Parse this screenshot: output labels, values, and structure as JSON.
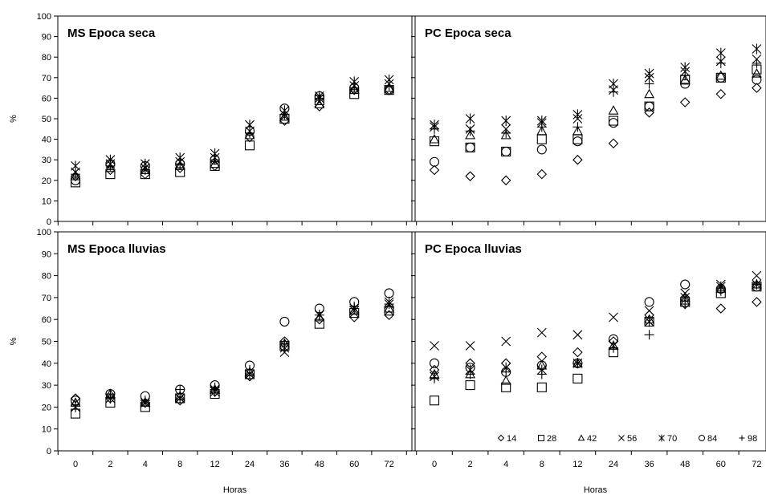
{
  "chart_data": [
    {
      "type": "scatter",
      "title": "MS Epoca seca",
      "xlabel": "",
      "ylabel": "%",
      "categories": [
        "0",
        "2",
        "4",
        "8",
        "12",
        "24",
        "36",
        "48",
        "60",
        "72"
      ],
      "ylim": [
        0,
        100
      ],
      "yticks": [
        0,
        10,
        20,
        30,
        40,
        50,
        60,
        70,
        80,
        90,
        100
      ],
      "grid": false,
      "series": [
        {
          "name": "14",
          "marker": "diamond",
          "values": [
            22,
            25,
            23,
            26,
            27,
            41,
            49,
            56,
            64,
            64
          ]
        },
        {
          "name": "28",
          "marker": "square",
          "values": [
            19,
            23,
            23,
            24,
            27,
            37,
            50,
            59,
            62,
            64
          ]
        },
        {
          "name": "42",
          "marker": "triangle",
          "values": [
            22,
            26,
            25,
            27,
            28,
            42,
            51,
            57,
            64,
            65
          ]
        },
        {
          "name": "56",
          "marker": "x",
          "values": [
            24,
            28,
            26,
            29,
            31,
            44,
            52,
            60,
            66,
            67
          ]
        },
        {
          "name": "70",
          "marker": "asterisk",
          "values": [
            27,
            30,
            28,
            31,
            33,
            47,
            54,
            61,
            68,
            69
          ]
        },
        {
          "name": "84",
          "marker": "circle",
          "values": [
            20,
            28,
            27,
            28,
            30,
            44,
            55,
            61,
            65,
            64
          ]
        },
        {
          "name": "98",
          "marker": "plus",
          "values": [
            23,
            27,
            25,
            28,
            30,
            43,
            52,
            60,
            65,
            66
          ]
        }
      ]
    },
    {
      "type": "scatter",
      "title": "PC Epoca seca",
      "xlabel": "",
      "ylabel": "",
      "categories": [
        "0",
        "2",
        "4",
        "8",
        "12",
        "24",
        "36",
        "48",
        "60",
        "72"
      ],
      "ylim": [
        0,
        100
      ],
      "yticks": [
        0,
        10,
        20,
        30,
        40,
        50,
        60,
        70,
        80,
        90,
        100
      ],
      "grid": false,
      "series": [
        {
          "name": "14",
          "marker": "diamond",
          "values": [
            25,
            22,
            20,
            23,
            30,
            38,
            53,
            58,
            62,
            65
          ]
        },
        {
          "name": "28",
          "marker": "square",
          "values": [
            39,
            36,
            34,
            40,
            40,
            49,
            56,
            69,
            70,
            74
          ]
        },
        {
          "name": "42",
          "marker": "triangle",
          "values": [
            40,
            42,
            42,
            44,
            44,
            54,
            62,
            69,
            71,
            72
          ]
        },
        {
          "name": "56",
          "marker": "x",
          "values": [
            46,
            45,
            45,
            48,
            50,
            64,
            70,
            73,
            78,
            79
          ]
        },
        {
          "name": "70",
          "marker": "asterisk",
          "values": [
            47,
            50,
            49,
            49,
            52,
            67,
            72,
            75,
            82,
            84
          ]
        },
        {
          "name": "84",
          "marker": "circle",
          "values": [
            29,
            36,
            34,
            35,
            39,
            48,
            56,
            67,
            70,
            69
          ]
        },
        {
          "name": "98",
          "marker": "plus",
          "values": [
            45,
            44,
            43,
            46,
            46,
            63,
            67,
            71,
            77,
            77
          ]
        }
      ]
    },
    {
      "type": "scatter",
      "title": "MS Epoca lluvias",
      "xlabel": "Horas",
      "ylabel": "%",
      "categories": [
        "0",
        "2",
        "4",
        "8",
        "12",
        "24",
        "36",
        "48",
        "60",
        "72"
      ],
      "ylim": [
        0,
        100
      ],
      "yticks": [
        0,
        10,
        20,
        30,
        40,
        50,
        60,
        70,
        80,
        90,
        100
      ],
      "grid": false,
      "series": [
        {
          "name": "14",
          "marker": "diamond",
          "values": [
            24,
            24,
            22,
            23,
            27,
            34,
            50,
            60,
            61,
            62
          ]
        },
        {
          "name": "28",
          "marker": "square",
          "values": [
            17,
            22,
            20,
            24,
            26,
            35,
            48,
            58,
            63,
            64
          ]
        },
        {
          "name": "42",
          "marker": "triangle",
          "values": [
            22,
            26,
            22,
            25,
            28,
            36,
            49,
            61,
            64,
            65
          ]
        },
        {
          "name": "56",
          "marker": "x",
          "values": [
            20,
            24,
            22,
            24,
            28,
            35,
            45,
            62,
            64,
            67
          ]
        },
        {
          "name": "70",
          "marker": "asterisk",
          "values": [
            20,
            24,
            22,
            24,
            27,
            35,
            47,
            62,
            65,
            68
          ]
        },
        {
          "name": "84",
          "marker": "circle",
          "values": [
            23,
            26,
            25,
            28,
            30,
            39,
            59,
            65,
            68,
            72
          ]
        },
        {
          "name": "98",
          "marker": "plus",
          "values": [
            21,
            26,
            23,
            28,
            29,
            37,
            49,
            62,
            66,
            67
          ]
        }
      ]
    },
    {
      "type": "scatter",
      "title": "PC Epoca lluvias",
      "xlabel": "Horas",
      "ylabel": "",
      "categories": [
        "0",
        "2",
        "4",
        "8",
        "12",
        "24",
        "36",
        "48",
        "60",
        "72"
      ],
      "ylim": [
        0,
        100
      ],
      "yticks": [
        0,
        10,
        20,
        30,
        40,
        50,
        60,
        70,
        80,
        90,
        100
      ],
      "grid": false,
      "legend": "bottom-right",
      "series": [
        {
          "name": "14",
          "marker": "diamond",
          "values": [
            37,
            40,
            40,
            43,
            45,
            50,
            62,
            67,
            65,
            68
          ]
        },
        {
          "name": "28",
          "marker": "square",
          "values": [
            23,
            30,
            29,
            29,
            33,
            45,
            59,
            68,
            72,
            75
          ]
        },
        {
          "name": "42",
          "marker": "triangle",
          "values": [
            35,
            35,
            32,
            39,
            40,
            48,
            60,
            70,
            74,
            76
          ]
        },
        {
          "name": "56",
          "marker": "x",
          "values": [
            48,
            48,
            50,
            54,
            53,
            61,
            64,
            72,
            76,
            80
          ]
        },
        {
          "name": "70",
          "marker": "asterisk",
          "values": [
            34,
            37,
            38,
            37,
            40,
            48,
            59,
            70,
            75,
            76
          ]
        },
        {
          "name": "84",
          "marker": "circle",
          "values": [
            40,
            38,
            36,
            39,
            40,
            51,
            68,
            76,
            74,
            75
          ]
        },
        {
          "name": "98",
          "marker": "plus",
          "values": [
            33,
            35,
            36,
            35,
            40,
            47,
            53,
            67,
            73,
            76
          ]
        }
      ]
    }
  ]
}
